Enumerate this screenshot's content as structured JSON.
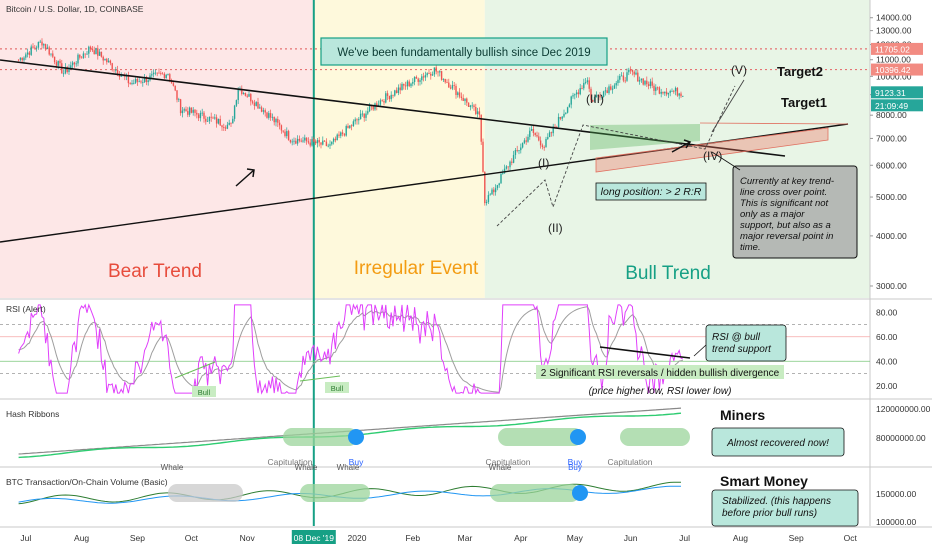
{
  "chart_data": [
    {
      "type": "candlestick",
      "title": "Bitcoin / U.S. Dollar, 1D, COINBASE",
      "ylim": [
        2800,
        15500
      ],
      "y_ticks": [
        3000,
        4000,
        5000,
        6000,
        7000,
        8000,
        9000,
        10000,
        11000,
        12000,
        13000,
        14000,
        15000
      ],
      "y_tick_labels": [
        "3000.00",
        "4000.00",
        "5000.00",
        "6000.00",
        "7000.00",
        "8000.00",
        "9000.00",
        "10000.00",
        "11000.00",
        "12000.00",
        "13000.00",
        "14000.00",
        "15000.00"
      ],
      "price_labels": {
        "target2": "11705.02",
        "target1": "10396.42",
        "last": "9123.31",
        "countdown": "21:09:49"
      },
      "target_levels": {
        "target2": 11705,
        "target1": 10396
      },
      "last_price": 9123,
      "zones": [
        {
          "label": "Bear Trend",
          "color": "#e74c3c"
        },
        {
          "label": "Irregular Event",
          "color": "#f39c12"
        },
        {
          "label": "Bull Trend",
          "color": "#16a085"
        }
      ],
      "banner": "We've been fundamentally bullish since Dec 2019",
      "target_text": [
        "Target2",
        "Target1"
      ],
      "wave_labels": [
        "(I)",
        "(II)",
        "(III)",
        "(IV)",
        "(V)"
      ],
      "position_label": "long position: > 2 R:R",
      "note": "Currently at key trend-line cross over point. This is significant not only as a major support, but also as a major reversal point in time.",
      "price_anchors": [
        {
          "x": "2019-06-27",
          "y": 11000
        },
        {
          "x": "2019-07-10",
          "y": 12200
        },
        {
          "x": "2019-07-22",
          "y": 10200
        },
        {
          "x": "2019-08-06",
          "y": 11800
        },
        {
          "x": "2019-08-28",
          "y": 9600
        },
        {
          "x": "2019-09-18",
          "y": 10200
        },
        {
          "x": "2019-09-25",
          "y": 8300
        },
        {
          "x": "2019-10-23",
          "y": 7500
        },
        {
          "x": "2019-10-27",
          "y": 9400
        },
        {
          "x": "2019-11-25",
          "y": 7000
        },
        {
          "x": "2019-12-17",
          "y": 6700
        },
        {
          "x": "2020-01-14",
          "y": 8700
        },
        {
          "x": "2020-02-13",
          "y": 10400
        },
        {
          "x": "2020-03-09",
          "y": 7900
        },
        {
          "x": "2020-03-12",
          "y": 4900
        },
        {
          "x": "2020-03-16",
          "y": 5100
        },
        {
          "x": "2020-04-07",
          "y": 7300
        },
        {
          "x": "2020-04-14",
          "y": 6700
        },
        {
          "x": "2020-05-08",
          "y": 9900
        },
        {
          "x": "2020-05-10",
          "y": 8700
        },
        {
          "x": "2020-06-01",
          "y": 10200
        },
        {
          "x": "2020-06-15",
          "y": 9300
        },
        {
          "x": "2020-06-30",
          "y": 9100
        }
      ]
    },
    {
      "type": "line",
      "title": "RSI (Alert)",
      "ylim": [
        10,
        90
      ],
      "y_ticks": [
        20,
        40,
        60,
        80
      ],
      "y_tick_labels": [
        "20.00",
        "40.00",
        "60.00",
        "80.00"
      ],
      "note": "RSI @ bull trend support",
      "annotation": [
        "2 Significant RSI reversals / hidden bullish divergence",
        "(price higher low, RSI lower low)"
      ],
      "markers": [
        "Bull",
        "Bull"
      ]
    },
    {
      "type": "line",
      "title": "Hash Ribbons",
      "y_ticks": [
        80000000,
        120000000
      ],
      "y_tick_labels": [
        "80000000.00",
        "120000000.00"
      ],
      "heading": "Miners",
      "note": "Almost recovered now!",
      "labels": [
        "Capitulation",
        "Buy",
        "Capitulation",
        "Buy",
        "Capitulation"
      ]
    },
    {
      "type": "line",
      "title": "BTC Transaction/On-Chain Volume (Basic)",
      "y_ticks": [
        100000,
        150000
      ],
      "y_tick_labels": [
        "100000.00",
        "150000.00"
      ],
      "heading": "Smart Money",
      "note": "Stabilized. (this happens before prior bull runs)",
      "labels": [
        "Whale",
        "Whale",
        "Whale",
        "Whale",
        "Buy"
      ]
    }
  ],
  "x_axis": {
    "labels": [
      "Jul",
      "Aug",
      "Sep",
      "Oct",
      "Nov",
      "2020",
      "Feb",
      "Mar",
      "Apr",
      "May",
      "Jun",
      "Jul",
      "Aug",
      "Sep",
      "Oct"
    ],
    "dates": [
      "2019-07-01",
      "2019-08-01",
      "2019-09-01",
      "2019-10-01",
      "2019-11-01",
      "2020-01-01",
      "2020-02-01",
      "2020-03-01",
      "2020-04-01",
      "2020-05-01",
      "2020-06-01",
      "2020-07-01",
      "2020-08-01",
      "2020-09-01",
      "2020-10-01"
    ],
    "highlight": "08 Dec '19",
    "highlight_date": "2019-12-08"
  },
  "colors": {
    "up": "#26a69a",
    "down": "#ef5350",
    "rsi": "#e040fb",
    "ma": "#9e9e9e",
    "teal": "#16a085",
    "note_bg": "#b8e5dd",
    "note_border": "#16a085"
  }
}
